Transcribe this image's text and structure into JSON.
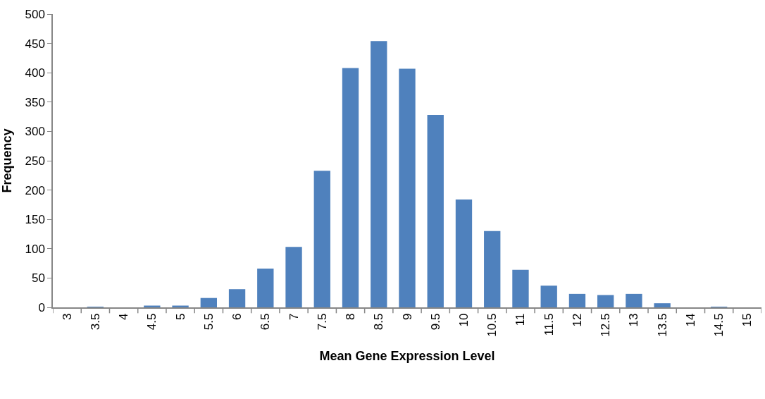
{
  "chart_data": {
    "type": "bar",
    "xlabel": "Mean Gene Expression Level",
    "ylabel": "Frequency",
    "categories": [
      "3",
      "3.5",
      "4",
      "4.5",
      "5",
      "5.5",
      "6",
      "6.5",
      "7",
      "7.5",
      "8",
      "8.5",
      "9",
      "9.5",
      "10",
      "10.5",
      "11",
      "11.5",
      "12",
      "12.5",
      "13",
      "13.5",
      "14",
      "14.5",
      "15"
    ],
    "values": [
      0,
      1,
      0,
      3,
      3,
      16,
      31,
      66,
      103,
      233,
      408,
      454,
      407,
      328,
      184,
      130,
      64,
      37,
      23,
      21,
      23,
      7,
      0,
      1,
      0
    ],
    "color": "#4f81bd",
    "ylim": [
      0,
      500
    ],
    "yticks": [
      0,
      50,
      100,
      150,
      200,
      250,
      300,
      350,
      400,
      450,
      500
    ]
  }
}
